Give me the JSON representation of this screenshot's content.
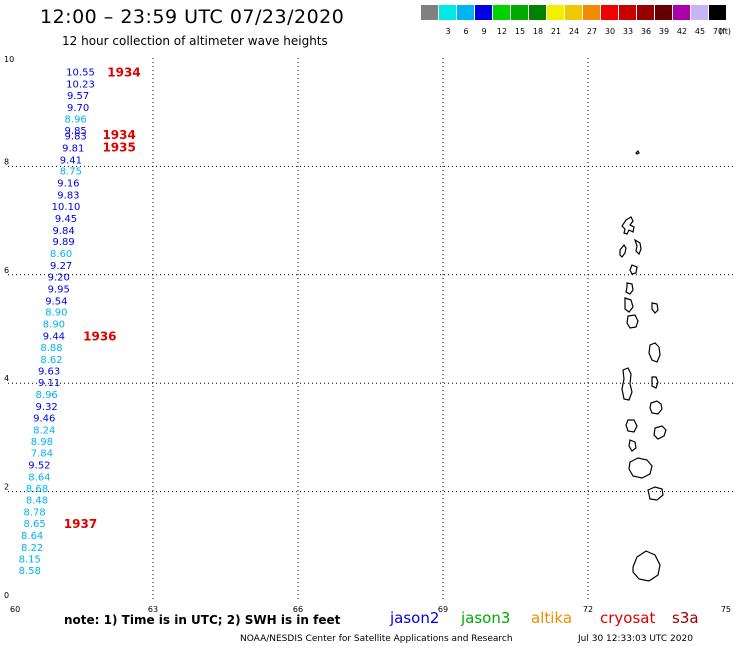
{
  "header": {
    "title": "12:00 – 23:59 UTC 07/23/2020",
    "subtitle": "12 hour collection of altimeter wave heights"
  },
  "legend": {
    "unit": "(ft)",
    "swatches": [
      {
        "label": "",
        "color": "#808080"
      },
      {
        "label": "3",
        "color": "#00e8e8"
      },
      {
        "label": "6",
        "color": "#00b4f0"
      },
      {
        "label": "9",
        "color": "#0000e6"
      },
      {
        "label": "12",
        "color": "#00d200"
      },
      {
        "label": "15",
        "color": "#00aa00"
      },
      {
        "label": "18",
        "color": "#008200"
      },
      {
        "label": "21",
        "color": "#f0f000"
      },
      {
        "label": "24",
        "color": "#f0c800"
      },
      {
        "label": "27",
        "color": "#f08c00"
      },
      {
        "label": "30",
        "color": "#f00000"
      },
      {
        "label": "33",
        "color": "#c80000"
      },
      {
        "label": "36",
        "color": "#960000"
      },
      {
        "label": "39",
        "color": "#640000"
      },
      {
        "label": "42",
        "color": "#aa00aa"
      },
      {
        "label": "45",
        "color": "#c8b4f0"
      },
      {
        "label": "70",
        "color": "#000000"
      }
    ]
  },
  "map": {
    "lon_range": [
      60,
      75
    ],
    "lat_range": [
      0,
      10
    ],
    "x_ticks": [
      "60",
      "63",
      "66",
      "69",
      "72",
      "75"
    ],
    "y_ticks": [
      "0",
      "2",
      "4",
      "6",
      "8",
      "10"
    ],
    "grid": "dotted"
  },
  "observations": [
    {
      "lon": 61.5,
      "lat": 9.75,
      "value": "10.55",
      "color": "#0000e6"
    },
    {
      "lon": 61.5,
      "lat": 9.53,
      "value": "10.23",
      "color": "#0000e6"
    },
    {
      "lon": 61.45,
      "lat": 9.32,
      "value": "9.57",
      "color": "#0000e6"
    },
    {
      "lon": 61.45,
      "lat": 9.1,
      "value": "9.70",
      "color": "#0000e6"
    },
    {
      "lon": 61.4,
      "lat": 8.88,
      "value": "8.96",
      "color": "#00b4f0"
    },
    {
      "lon": 61.4,
      "lat": 8.67,
      "value": "9.85",
      "color": "#0000e6"
    },
    {
      "lon": 61.4,
      "lat": 8.57,
      "value": "9.83",
      "color": "#0000e6"
    },
    {
      "lon": 61.35,
      "lat": 8.35,
      "value": "9.81",
      "color": "#0000e6"
    },
    {
      "lon": 61.3,
      "lat": 8.13,
      "value": "9.41",
      "color": "#0000e6"
    },
    {
      "lon": 61.3,
      "lat": 7.92,
      "value": "8.75",
      "color": "#00b4f0"
    },
    {
      "lon": 61.25,
      "lat": 7.7,
      "value": "9.16",
      "color": "#0000e6"
    },
    {
      "lon": 61.25,
      "lat": 7.48,
      "value": "9.83",
      "color": "#0000e6"
    },
    {
      "lon": 61.2,
      "lat": 7.27,
      "value": "10.10",
      "color": "#0000e6"
    },
    {
      "lon": 61.2,
      "lat": 7.05,
      "value": "9.45",
      "color": "#0000e6"
    },
    {
      "lon": 61.15,
      "lat": 6.83,
      "value": "9.84",
      "color": "#0000e6"
    },
    {
      "lon": 61.15,
      "lat": 6.62,
      "value": "9.89",
      "color": "#0000e6"
    },
    {
      "lon": 61.1,
      "lat": 6.4,
      "value": "8.60",
      "color": "#00b4f0"
    },
    {
      "lon": 61.1,
      "lat": 6.18,
      "value": "9.27",
      "color": "#0000e6"
    },
    {
      "lon": 61.05,
      "lat": 5.97,
      "value": "9.20",
      "color": "#0000e6"
    },
    {
      "lon": 61.05,
      "lat": 5.75,
      "value": "9.95",
      "color": "#0000e6"
    },
    {
      "lon": 61.0,
      "lat": 5.53,
      "value": "9.54",
      "color": "#0000e6"
    },
    {
      "lon": 61.0,
      "lat": 5.32,
      "value": "8.90",
      "color": "#00b4f0"
    },
    {
      "lon": 60.95,
      "lat": 5.1,
      "value": "8.90",
      "color": "#00b4f0"
    },
    {
      "lon": 60.95,
      "lat": 4.88,
      "value": "9.44",
      "color": "#0000e6"
    },
    {
      "lon": 60.9,
      "lat": 4.67,
      "value": "8.88",
      "color": "#00b4f0"
    },
    {
      "lon": 60.9,
      "lat": 4.45,
      "value": "8.62",
      "color": "#00b4f0"
    },
    {
      "lon": 60.85,
      "lat": 4.23,
      "value": "9.63",
      "color": "#0000e6"
    },
    {
      "lon": 60.85,
      "lat": 4.02,
      "value": "9.11",
      "color": "#0000e6"
    },
    {
      "lon": 60.8,
      "lat": 3.8,
      "value": "8.96",
      "color": "#00b4f0"
    },
    {
      "lon": 60.8,
      "lat": 3.58,
      "value": "9.32",
      "color": "#0000e6"
    },
    {
      "lon": 60.75,
      "lat": 3.37,
      "value": "9.46",
      "color": "#0000e6"
    },
    {
      "lon": 60.75,
      "lat": 3.15,
      "value": "8.24",
      "color": "#00b4f0"
    },
    {
      "lon": 60.7,
      "lat": 2.93,
      "value": "8.98",
      "color": "#00b4f0"
    },
    {
      "lon": 60.7,
      "lat": 2.72,
      "value": "7.84",
      "color": "#00b4f0"
    },
    {
      "lon": 60.65,
      "lat": 2.5,
      "value": "9.52",
      "color": "#0000e6"
    },
    {
      "lon": 60.65,
      "lat": 2.28,
      "value": "8.64",
      "color": "#00b4f0"
    },
    {
      "lon": 60.6,
      "lat": 2.07,
      "value": "8.68",
      "color": "#00b4f0"
    },
    {
      "lon": 60.6,
      "lat": 1.85,
      "value": "8.48",
      "color": "#00b4f0"
    },
    {
      "lon": 60.55,
      "lat": 1.63,
      "value": "8.78",
      "color": "#00b4f0"
    },
    {
      "lon": 60.55,
      "lat": 1.42,
      "value": "8.65",
      "color": "#00b4f0"
    },
    {
      "lon": 60.5,
      "lat": 1.2,
      "value": "8.64",
      "color": "#00b4f0"
    },
    {
      "lon": 60.5,
      "lat": 0.98,
      "value": "8.22",
      "color": "#00b4f0"
    },
    {
      "lon": 60.45,
      "lat": 0.77,
      "value": "8.15",
      "color": "#00b4f0"
    },
    {
      "lon": 60.45,
      "lat": 0.55,
      "value": "8.58",
      "color": "#00b4f0"
    }
  ],
  "time_labels": [
    {
      "lon": 62.4,
      "lat": 9.75,
      "text": "1934"
    },
    {
      "lon": 62.3,
      "lat": 8.6,
      "text": "1934"
    },
    {
      "lon": 62.3,
      "lat": 8.37,
      "text": "1935"
    },
    {
      "lon": 61.9,
      "lat": 4.88,
      "text": "1936"
    },
    {
      "lon": 61.5,
      "lat": 1.42,
      "text": "1937"
    }
  ],
  "footer": {
    "note": "note:  1) Time is in UTC;  2) SWH is in feet",
    "satellites": [
      {
        "name": "jason2",
        "color": "#0000e6"
      },
      {
        "name": "jason3",
        "color": "#00aa00"
      },
      {
        "name": "altika",
        "color": "#f08c00"
      },
      {
        "name": "cryosat",
        "color": "#e00000"
      },
      {
        "name": "s3a",
        "color": "#960000"
      }
    ],
    "credit": "NOAA/NESDIS Center for Satellite Applications and Research",
    "timestamp": "Jul 30 12:33:03 UTC 2020"
  }
}
